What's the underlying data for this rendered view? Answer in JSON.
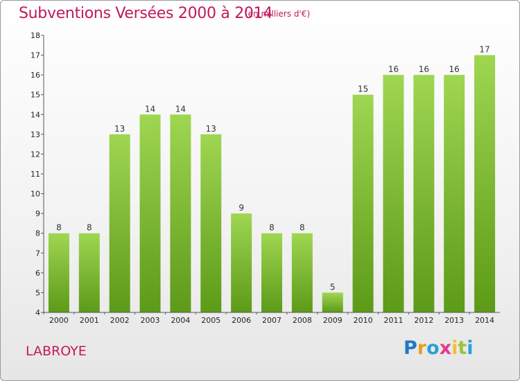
{
  "title": "Subventions Versées 2000 à 2014",
  "subtitle": "(en milliers d'€)",
  "town": "LABROYE",
  "logo": {
    "text": "Proxiti",
    "colors": [
      "#1f78c8",
      "#e8a020",
      "#2a9fd8",
      "#e23a8e",
      "#f2c230",
      "#9ac43a",
      "#2a9fd8"
    ]
  },
  "colors": {
    "bar_top": "#9fd652",
    "bar_bottom": "#5c9a18",
    "accent": "#c2185b"
  },
  "chart_data": {
    "type": "bar",
    "categories": [
      "2000",
      "2001",
      "2002",
      "2003",
      "2004",
      "2005",
      "2006",
      "2007",
      "2008",
      "2009",
      "2010",
      "2011",
      "2012",
      "2013",
      "2014"
    ],
    "values": [
      8,
      8,
      13,
      14,
      14,
      13,
      9,
      8,
      8,
      5,
      15,
      16,
      16,
      16,
      17
    ],
    "title": "Subventions Versées 2000 à 2014",
    "ylabel": "",
    "xlabel": "",
    "ylim": [
      4,
      18
    ],
    "yticks": [
      4,
      5,
      6,
      7,
      8,
      9,
      10,
      11,
      12,
      13,
      14,
      15,
      16,
      17,
      18
    ],
    "grid": false
  }
}
